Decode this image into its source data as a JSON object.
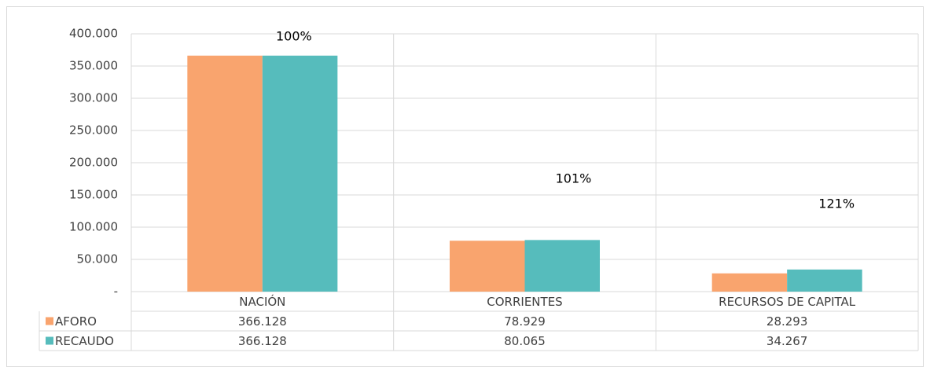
{
  "chart_data": {
    "type": "bar",
    "categories": [
      "NACIÓN",
      "CORRIENTES",
      "RECURSOS DE CAPITAL"
    ],
    "series": [
      {
        "name": "AFORO",
        "color": "#f9a46e",
        "values": [
          366128,
          78929,
          28293
        ],
        "value_labels": [
          "366.128",
          "78.929",
          "28.293"
        ]
      },
      {
        "name": "RECAUDO",
        "color": "#56bcbc",
        "values": [
          366128,
          80065,
          34267
        ],
        "value_labels": [
          "366.128",
          "80.065",
          "34.267"
        ]
      }
    ],
    "annotations": [
      "100%",
      "101%",
      "121%"
    ],
    "ylim": [
      0,
      400000
    ],
    "yticks": [
      {
        "value": 0,
        "label": "-"
      },
      {
        "value": 50000,
        "label": "50.000"
      },
      {
        "value": 100000,
        "label": "100.000"
      },
      {
        "value": 150000,
        "label": "150.000"
      },
      {
        "value": 200000,
        "label": "200.000"
      },
      {
        "value": 250000,
        "label": "250.000"
      },
      {
        "value": 300000,
        "label": "300.000"
      },
      {
        "value": 350000,
        "label": "350.000"
      },
      {
        "value": 400000,
        "label": "400.000"
      }
    ],
    "grid": true
  }
}
